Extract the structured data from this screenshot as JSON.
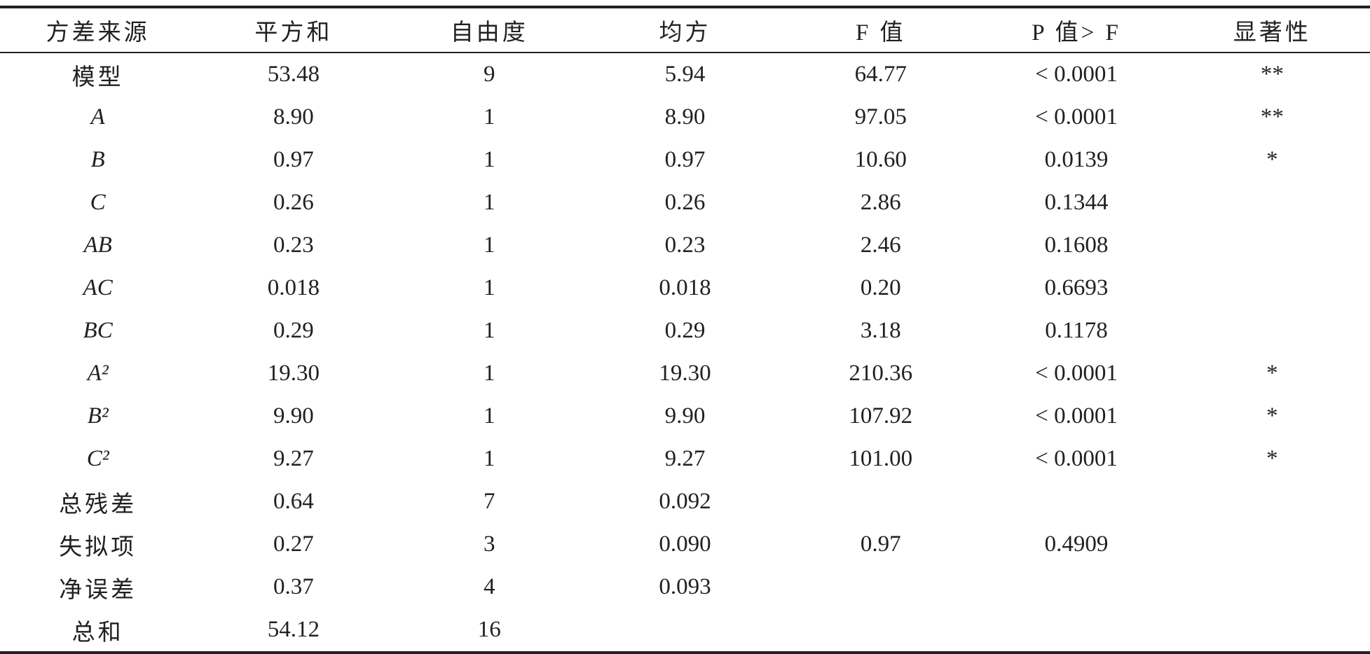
{
  "table": {
    "header": [
      "方差来源",
      "平方和",
      "自由度",
      "均方",
      "F 值",
      "P 值> F",
      "显著性"
    ],
    "rows": [
      [
        "模型",
        "53.48",
        "9",
        "5.94",
        "64.77",
        "< 0.0001",
        "**"
      ],
      [
        "A",
        "8.90",
        "1",
        "8.90",
        "97.05",
        "< 0.0001",
        "**"
      ],
      [
        "B",
        "0.97",
        "1",
        "0.97",
        "10.60",
        "0.0139",
        "*"
      ],
      [
        "C",
        "0.26",
        "1",
        "0.26",
        "2.86",
        "0.1344",
        null
      ],
      [
        "AB",
        "0.23",
        "1",
        "0.23",
        "2.46",
        "0.1608",
        null
      ],
      [
        "AC",
        "0.018",
        "1",
        "0.018",
        "0.20",
        "0.6693",
        null
      ],
      [
        "BC",
        "0.29",
        "1",
        "0.29",
        "3.18",
        "0.1178",
        null
      ],
      [
        "A²",
        "19.30",
        "1",
        "19.30",
        "210.36",
        "< 0.0001",
        "*"
      ],
      [
        "B²",
        "9.90",
        "1",
        "9.90",
        "107.92",
        "< 0.0001",
        "*"
      ],
      [
        "C²",
        "9.27",
        "1",
        "9.27",
        "101.00",
        "< 0.0001",
        "*"
      ],
      [
        "总残差",
        "0.64",
        "7",
        "0.092",
        null,
        null,
        null
      ],
      [
        "失拟项",
        "0.27",
        "3",
        "0.090",
        "0.97",
        "0.4909",
        null
      ],
      [
        "净误差",
        "0.37",
        "4",
        "0.093",
        null,
        null,
        null
      ],
      [
        "总和",
        "54.12",
        "16",
        null,
        null,
        null,
        null
      ]
    ]
  }
}
